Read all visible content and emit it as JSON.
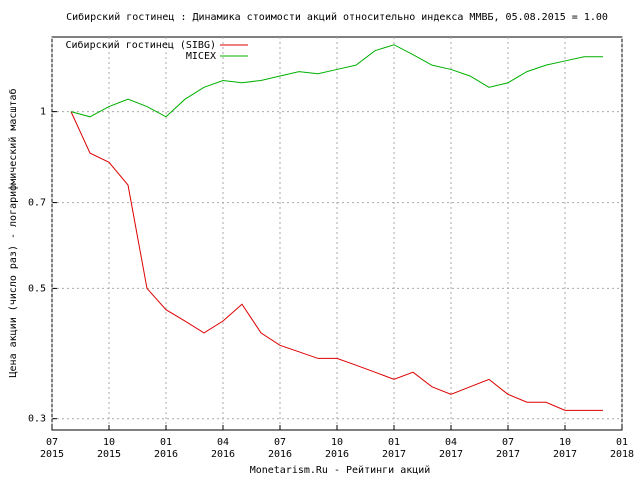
{
  "chart_data": {
    "type": "line",
    "title": "Сибирский гостинец : Динамика стоимости акций относительно индекса ММВБ, 05.08.2015 = 1.00",
    "y_label": "Цена акции (число раз) - логарифмический масштаб",
    "x_label": "Monetarism.Ru - Рейтинги акций",
    "log_y": true,
    "grid": true,
    "legend": "top-left",
    "x": [
      "2015-08",
      "2015-09",
      "2015-10",
      "2015-11",
      "2015-12",
      "2016-01",
      "2016-02",
      "2016-03",
      "2016-04",
      "2016-05",
      "2016-06",
      "2016-07",
      "2016-08",
      "2016-09",
      "2016-10",
      "2016-11",
      "2016-12",
      "2017-01",
      "2017-02",
      "2017-03",
      "2017-04",
      "2017-05",
      "2017-06",
      "2017-07",
      "2017-08",
      "2017-09",
      "2017-10",
      "2017-11",
      "2017-12"
    ],
    "series": [
      {
        "name": "Сибирский гостинец (SIBG)",
        "color": "#dd0000",
        "values": [
          1.0,
          0.85,
          0.82,
          0.75,
          0.5,
          0.46,
          0.44,
          0.42,
          0.44,
          0.47,
          0.42,
          0.4,
          0.39,
          0.38,
          0.38,
          0.37,
          0.36,
          0.35,
          0.36,
          0.34,
          0.33,
          0.34,
          0.35,
          0.33,
          0.32,
          0.32,
          0.31,
          0.31,
          0.31
        ]
      },
      {
        "name": "MICEX",
        "color": "#00b000",
        "values": [
          1.0,
          0.98,
          1.02,
          1.05,
          1.02,
          0.98,
          1.05,
          1.1,
          1.13,
          1.12,
          1.13,
          1.15,
          1.17,
          1.16,
          1.18,
          1.2,
          1.27,
          1.3,
          1.25,
          1.2,
          1.18,
          1.15,
          1.1,
          1.12,
          1.17,
          1.2,
          1.22,
          1.24,
          1.24
        ]
      }
    ],
    "xlim": [
      "2015-07",
      "2018-01"
    ],
    "xticks": [
      {
        "value": "2015-07",
        "label": "07 2015"
      },
      {
        "value": "2015-10",
        "label": "10 2015"
      },
      {
        "value": "2016-01",
        "label": "01 2016"
      },
      {
        "value": "2016-04",
        "label": "04 2016"
      },
      {
        "value": "2016-07",
        "label": "07 2016"
      },
      {
        "value": "2016-10",
        "label": "10 2016"
      },
      {
        "value": "2017-01",
        "label": "01 2017"
      },
      {
        "value": "2017-04",
        "label": "04 2017"
      },
      {
        "value": "2017-07",
        "label": "07 2017"
      },
      {
        "value": "2017-10",
        "label": "10 2017"
      },
      {
        "value": "2018-01",
        "label": "01 2018"
      }
    ],
    "ylim": [
      0.287,
      1.34
    ],
    "yticks": [
      0.3,
      0.5,
      0.7,
      1
    ]
  }
}
